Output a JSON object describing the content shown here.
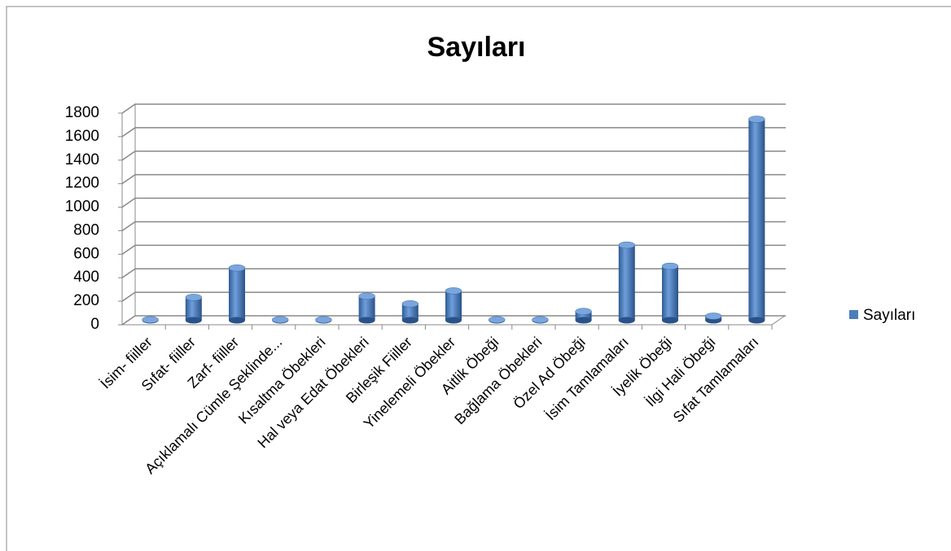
{
  "chart_data": {
    "type": "bar3d",
    "title": "Sayıları",
    "categories": [
      "İsim- fiiller",
      "Sıfat- fiiller",
      "Zarf- fiiller",
      "Açıklamalı Cümle Şeklinde...",
      "Kısaltma Öbekleri",
      "Hal veya Edat Öbekleri",
      "Birleşik Fiiller",
      "Yinelemeli Öbekler",
      "Aitlik Öbeği",
      "Bağlama Öbekleri",
      "Özel Ad Öbeği",
      "İsim Tamlamaları",
      "İyelik Öbeği",
      "İlgi Hali Öbeği",
      "Sıfat Tamlamaları"
    ],
    "series": [
      {
        "name": "Sayıları",
        "color": "#4a7ebb",
        "values": [
          5,
          195,
          445,
          5,
          5,
          205,
          140,
          250,
          5,
          5,
          75,
          640,
          460,
          35,
          1710
        ]
      }
    ],
    "ylim": [
      0,
      1800
    ],
    "yticks": [
      0,
      200,
      400,
      600,
      800,
      1000,
      1200,
      1400,
      1600,
      1800
    ],
    "grid": true,
    "legend": "right"
  }
}
